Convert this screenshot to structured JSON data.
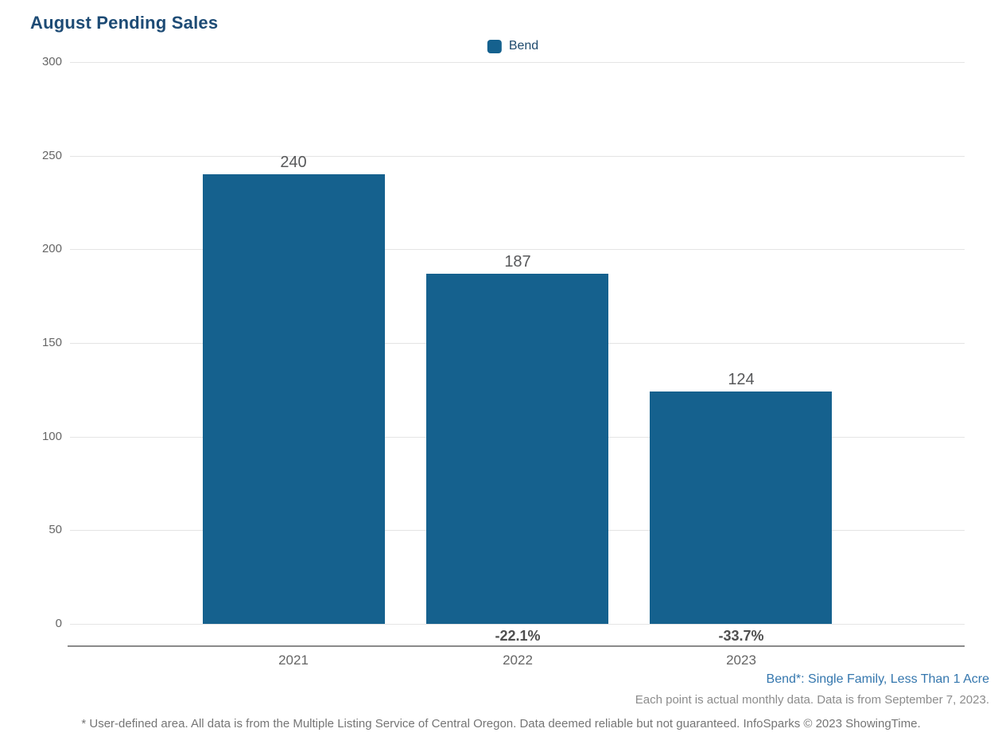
{
  "chart_data": {
    "type": "bar",
    "title": "August Pending Sales",
    "legend": [
      {
        "label": "Bend",
        "color": "#15618E"
      }
    ],
    "legend_position": "top-center",
    "categories": [
      "2021",
      "2022",
      "2023"
    ],
    "series": [
      {
        "name": "Bend",
        "values": [
          240,
          187,
          124
        ]
      }
    ],
    "value_labels": [
      "240",
      "187",
      "124"
    ],
    "pct_change": [
      "",
      "-22.1%",
      "-33.7%"
    ],
    "ylim": [
      0,
      300
    ],
    "yticks": [
      300,
      250,
      200,
      150,
      100,
      50,
      0
    ],
    "grid": true,
    "xlabel": "",
    "ylabel": ""
  },
  "footnotes": {
    "filter_note": "Bend*: Single Family, Less Than 1 Acre",
    "data_note": "Each point is actual monthly data. Data is from September 7, 2023.",
    "disclaimer": "* User-defined area. All data is from the Multiple Listing Service of Central Oregon. Data deemed reliable but not guaranteed. InfoSparks © 2023 ShowingTime."
  },
  "colors": {
    "bar": "#15618E",
    "title_text": "#1d4b75",
    "footnote_link": "#3577ae",
    "gridline": "#e4e4e4",
    "axis_line": "#8a8a8a"
  }
}
